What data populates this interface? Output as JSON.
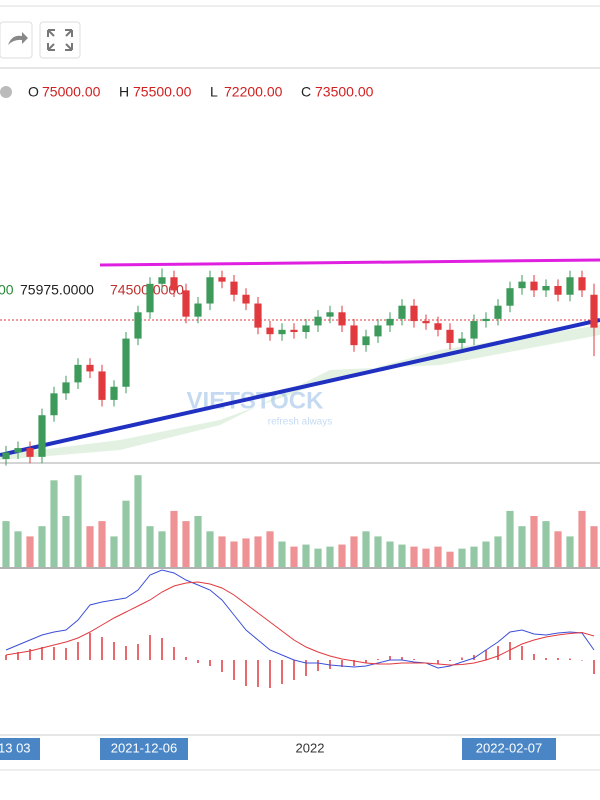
{
  "chart_data": {
    "type": "candlestick",
    "header": {
      "labels": [
        "O",
        "H",
        "L",
        "C"
      ],
      "values": [
        "75000.00",
        "75500.00",
        "72200.00",
        "73500.00"
      ]
    },
    "indicator_values": [
      "00",
      "75975.0000",
      "74500.0000"
    ],
    "watermark": "VIETSTOCK",
    "watermark_sub": "refresh always",
    "date_labels": [
      "13 03",
      "2021-12-06",
      "2022",
      "2022-02-07"
    ],
    "up_color": "#3d9a5b",
    "down_color": "#e0393e",
    "ylim": [
      67000,
      77500
    ],
    "open": [
      67500,
      67800,
      68000,
      67600,
      69500,
      70500,
      71000,
      71800,
      71500,
      70200,
      70800,
      73000,
      74200,
      75500,
      75800,
      75200,
      74000,
      74600,
      75800,
      75600,
      75000,
      74600,
      73500,
      73200,
      73400,
      73300,
      73600,
      74000,
      74200,
      73600,
      72700,
      73100,
      73600,
      73900,
      74500,
      73800,
      73700,
      73400,
      72800,
      73000,
      73800,
      73900,
      74500,
      75300,
      75600,
      75200,
      75400,
      75000,
      75800,
      75000
    ],
    "high": [
      68100,
      68300,
      68300,
      69800,
      70800,
      71300,
      72100,
      72100,
      71800,
      71100,
      73300,
      74500,
      75800,
      76200,
      76100,
      75500,
      74900,
      76100,
      76100,
      75900,
      75300,
      74900,
      73800,
      73700,
      73700,
      73900,
      74300,
      74500,
      74500,
      73900,
      73400,
      73900,
      74200,
      74800,
      74800,
      74100,
      74000,
      73700,
      73300,
      74100,
      74200,
      74800,
      75600,
      75900,
      75900,
      75700,
      75700,
      76100,
      76100,
      75500
    ],
    "low": [
      67200,
      67500,
      67300,
      67300,
      69200,
      70200,
      70700,
      71200,
      69900,
      69900,
      70500,
      72700,
      73900,
      75200,
      74900,
      73700,
      73700,
      74300,
      75300,
      74700,
      74300,
      73200,
      72900,
      72900,
      73000,
      73000,
      73300,
      73700,
      73300,
      72400,
      72400,
      72800,
      73300,
      73600,
      73500,
      73400,
      73100,
      72500,
      72500,
      72700,
      73500,
      73600,
      74200,
      75000,
      74900,
      74900,
      74700,
      74700,
      74900,
      72200
    ],
    "close": [
      67800,
      68000,
      67600,
      69500,
      70500,
      71000,
      71800,
      71500,
      70200,
      70800,
      73000,
      74200,
      75500,
      75800,
      75200,
      74000,
      74600,
      75800,
      75600,
      75000,
      74600,
      73500,
      73200,
      73400,
      73300,
      73600,
      74000,
      74200,
      73600,
      72700,
      73100,
      73600,
      73900,
      74500,
      73800,
      73700,
      73400,
      72800,
      73000,
      73800,
      73900,
      74500,
      75300,
      75600,
      75200,
      75400,
      75000,
      75800,
      75200,
      73500
    ],
    "volume": [
      45,
      35,
      30,
      40,
      85,
      50,
      90,
      40,
      45,
      30,
      65,
      90,
      40,
      35,
      55,
      45,
      50,
      35,
      30,
      25,
      28,
      30,
      35,
      25,
      20,
      22,
      18,
      20,
      22,
      30,
      35,
      30,
      25,
      22,
      20,
      18,
      20,
      15,
      18,
      20,
      25,
      30,
      55,
      40,
      50,
      45,
      35,
      30,
      55,
      40
    ],
    "volume_lim": [
      0,
      100
    ],
    "macd": {
      "name": "MACD",
      "color": "#3b4fd8",
      "values": [
        100,
        150,
        200,
        250,
        280,
        300,
        400,
        550,
        580,
        600,
        620,
        700,
        850,
        900,
        870,
        800,
        750,
        700,
        600,
        450,
        300,
        200,
        100,
        50,
        0,
        -30,
        -30,
        -50,
        -60,
        -70,
        -60,
        -30,
        0,
        0,
        -20,
        -30,
        -80,
        -60,
        -20,
        20,
        100,
        180,
        280,
        300,
        260,
        250,
        270,
        280,
        270,
        100
      ]
    },
    "signal": {
      "name": "Signal",
      "color": "#e0393e",
      "values": [
        50,
        70,
        90,
        120,
        150,
        180,
        220,
        280,
        350,
        420,
        480,
        540,
        600,
        680,
        740,
        770,
        780,
        760,
        720,
        650,
        560,
        470,
        380,
        290,
        200,
        130,
        80,
        40,
        10,
        -10,
        -30,
        -40,
        -40,
        -30,
        -30,
        -30,
        -40,
        -50,
        -45,
        -30,
        0,
        40,
        100,
        160,
        200,
        230,
        250,
        265,
        275,
        240
      ]
    },
    "histogram": {
      "color": "#e0393e",
      "values": [
        50,
        80,
        110,
        130,
        130,
        120,
        180,
        270,
        230,
        180,
        140,
        160,
        250,
        220,
        130,
        30,
        -30,
        -60,
        -120,
        -200,
        -260,
        -270,
        -280,
        -240,
        -200,
        -160,
        -110,
        -90,
        -70,
        -60,
        -30,
        10,
        40,
        30,
        10,
        0,
        -40,
        -10,
        25,
        50,
        100,
        140,
        180,
        140,
        60,
        20,
        20,
        15,
        -5,
        -140
      ]
    },
    "macd_lim": [
      -700,
      900
    ]
  }
}
